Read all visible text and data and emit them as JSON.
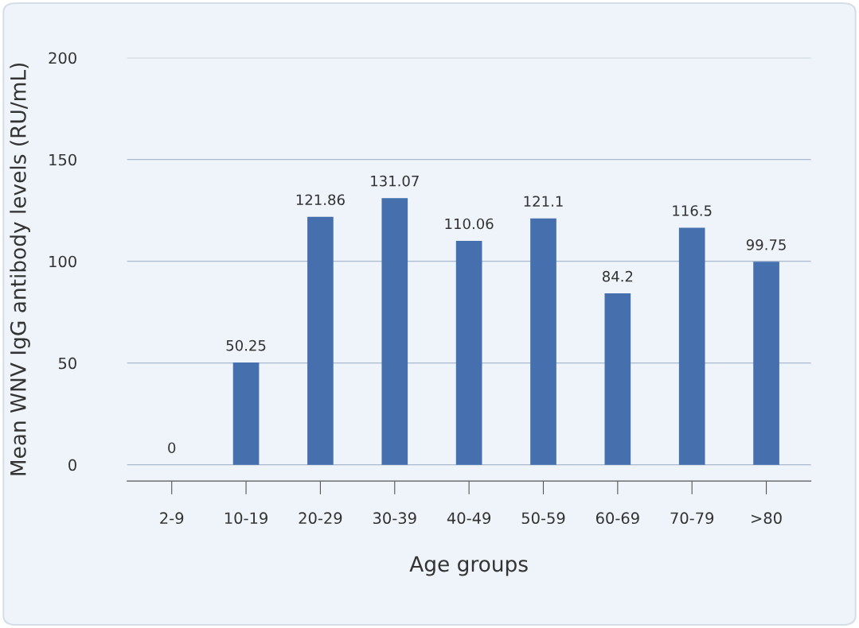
{
  "chart_data": {
    "type": "bar",
    "xlabel": "Age groups",
    "ylabel": "Mean WNV IgG antibody levels (RU/mL)",
    "categories": [
      "2-9",
      "10-19",
      "20-29",
      "30-39",
      "40-49",
      "50-59",
      "60-69",
      "70-79",
      ">80"
    ],
    "values": [
      0,
      50.25,
      121.86,
      131.07,
      110.06,
      121.1,
      84.2,
      116.5,
      99.75
    ],
    "color": "#4570ad",
    "ylim": [
      -8,
      200
    ],
    "yticks": [
      0,
      50,
      100,
      150,
      200
    ],
    "grid": "y",
    "data_labels": true
  }
}
